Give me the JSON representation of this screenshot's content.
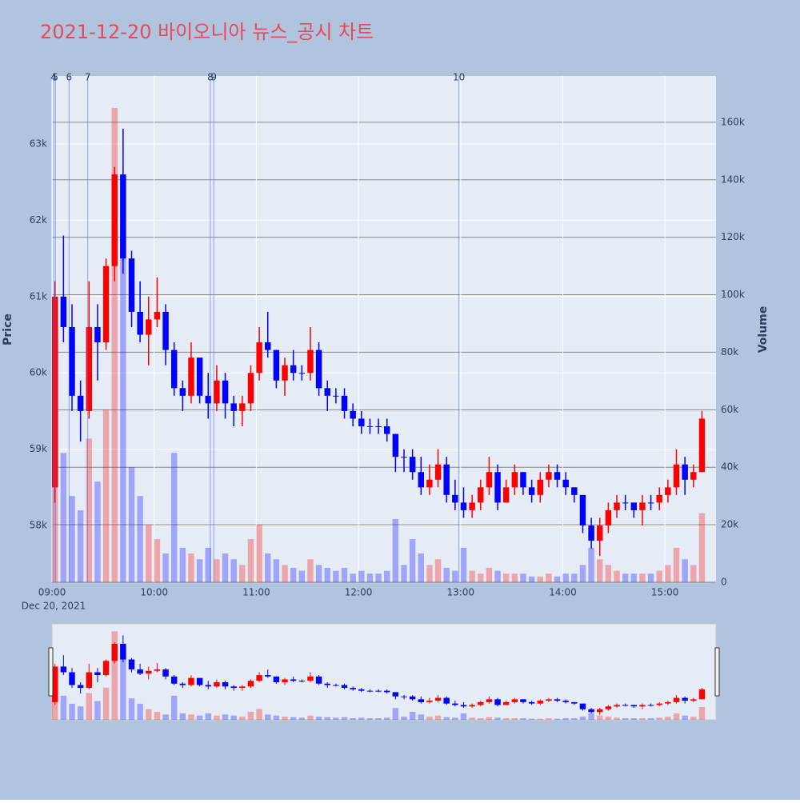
{
  "chart_data": {
    "type": "candlestick",
    "title": "2021-12-20 바이오니아 뉴스_공시 차트",
    "y_title": "Price",
    "y2_title": "Volume",
    "x": [
      "09:00",
      "09:05",
      "09:10",
      "09:15",
      "09:20",
      "09:25",
      "09:30",
      "09:35",
      "09:40",
      "09:45",
      "09:50",
      "09:55",
      "10:00",
      "10:05",
      "10:10",
      "10:15",
      "10:20",
      "10:25",
      "10:30",
      "10:35",
      "10:40",
      "10:45",
      "10:50",
      "10:55",
      "11:00",
      "11:05",
      "11:10",
      "11:15",
      "11:20",
      "11:25",
      "11:30",
      "11:35",
      "11:40",
      "11:45",
      "11:50",
      "11:55",
      "12:00",
      "12:05",
      "12:10",
      "12:15",
      "12:20",
      "12:25",
      "12:30",
      "12:35",
      "12:40",
      "12:45",
      "12:50",
      "12:55",
      "13:00",
      "13:05",
      "13:10",
      "13:15",
      "13:20",
      "13:25",
      "13:30",
      "13:35",
      "13:40",
      "13:45",
      "13:50",
      "13:55",
      "14:00",
      "14:05",
      "14:10",
      "14:15",
      "14:20",
      "14:25",
      "14:30",
      "14:35",
      "14:40",
      "14:45",
      "14:50",
      "14:55",
      "15:00",
      "15:05",
      "15:10",
      "15:15",
      "15:20"
    ],
    "open": [
      58500,
      61000,
      60600,
      59700,
      59500,
      60600,
      60400,
      61400,
      62600,
      61500,
      60800,
      60500,
      60700,
      60800,
      60300,
      59800,
      59700,
      60200,
      59700,
      59600,
      59900,
      59600,
      59500,
      59600,
      60000,
      60400,
      60300,
      59900,
      60100,
      60000,
      60000,
      60300,
      59800,
      59700,
      59700,
      59500,
      59400,
      59300,
      59300,
      59300,
      59200,
      58900,
      58900,
      58700,
      58500,
      58600,
      58800,
      58400,
      58300,
      58200,
      58300,
      58500,
      58700,
      58300,
      58500,
      58700,
      58500,
      58400,
      58600,
      58700,
      58600,
      58500,
      58400,
      58000,
      57800,
      58000,
      58200,
      58300,
      58300,
      58200,
      58300,
      58300,
      58400,
      58500,
      58800,
      58600,
      58700
    ],
    "high": [
      61200,
      61800,
      60900,
      59900,
      61200,
      60900,
      61500,
      62700,
      63200,
      61600,
      61200,
      61000,
      61250,
      60900,
      60400,
      59900,
      60400,
      60200,
      60000,
      60100,
      60000,
      59700,
      59700,
      60100,
      60600,
      60800,
      60300,
      60200,
      60300,
      60100,
      60600,
      60400,
      59900,
      59800,
      59800,
      59600,
      59500,
      59400,
      59400,
      59400,
      59200,
      59000,
      59000,
      58900,
      58800,
      59000,
      58900,
      58600,
      58500,
      58400,
      58600,
      58900,
      58800,
      58600,
      58800,
      58700,
      58600,
      58700,
      58800,
      58800,
      58700,
      58500,
      58400,
      58100,
      58100,
      58300,
      58400,
      58400,
      58300,
      58400,
      58400,
      58500,
      58600,
      59000,
      58900,
      58800,
      59500
    ],
    "low": [
      58300,
      60400,
      59500,
      59100,
      59400,
      59900,
      60300,
      61200,
      61300,
      60600,
      60400,
      60100,
      60600,
      60100,
      59700,
      59500,
      59600,
      59600,
      59400,
      59500,
      59400,
      59300,
      59300,
      59500,
      59900,
      60200,
      59800,
      59700,
      59900,
      59900,
      59900,
      59700,
      59500,
      59600,
      59400,
      59300,
      59200,
      59200,
      59200,
      59100,
      58700,
      58700,
      58600,
      58400,
      58400,
      58500,
      58300,
      58200,
      58100,
      58100,
      58200,
      58400,
      58200,
      58300,
      58400,
      58400,
      58300,
      58300,
      58500,
      58500,
      58400,
      58300,
      57900,
      57700,
      57600,
      57900,
      58100,
      58200,
      58100,
      58000,
      58200,
      58200,
      58300,
      58400,
      58400,
      58500,
      58700
    ],
    "close": [
      61000,
      60600,
      59700,
      59500,
      60600,
      60400,
      61400,
      62600,
      61500,
      60800,
      60500,
      60700,
      60800,
      60300,
      59800,
      59700,
      60200,
      59700,
      59600,
      59900,
      59600,
      59500,
      59600,
      60000,
      60400,
      60300,
      59900,
      60100,
      60000,
      60000,
      60300,
      59800,
      59700,
      59700,
      59500,
      59400,
      59300,
      59300,
      59300,
      59200,
      58900,
      58900,
      58700,
      58500,
      58600,
      58800,
      58400,
      58300,
      58200,
      58300,
      58500,
      58700,
      58300,
      58500,
      58700,
      58500,
      58400,
      58600,
      58700,
      58600,
      58500,
      58400,
      58000,
      57800,
      58000,
      58200,
      58300,
      58300,
      58200,
      58300,
      58300,
      58400,
      58500,
      58800,
      58600,
      58700,
      59400
    ],
    "volume": [
      88000,
      45000,
      30000,
      25000,
      50000,
      35000,
      60000,
      165000,
      120000,
      40000,
      30000,
      20000,
      15000,
      10000,
      45000,
      12000,
      10000,
      8000,
      12000,
      8000,
      10000,
      8000,
      6000,
      15000,
      20000,
      10000,
      8000,
      6000,
      5000,
      4000,
      8000,
      6000,
      5000,
      4000,
      5000,
      3000,
      4000,
      3000,
      3000,
      4000,
      22000,
      6000,
      15000,
      10000,
      6000,
      8000,
      5000,
      4000,
      12000,
      4000,
      3000,
      5000,
      4000,
      3000,
      3000,
      3000,
      2000,
      2000,
      3000,
      2000,
      3000,
      3000,
      6000,
      12000,
      8000,
      6000,
      4000,
      3000,
      3000,
      3000,
      3000,
      4000,
      6000,
      12000,
      8000,
      6000,
      24000
    ],
    "increasing_color": "#ff0000",
    "decreasing_color": "#0000ff",
    "xlim": [
      "09:00",
      "15:30"
    ],
    "xticks": [
      "09:00",
      "10:00",
      "11:00",
      "12:00",
      "13:00",
      "14:00",
      "15:00"
    ],
    "x_date_label": "Dec 20, 2021",
    "ylim": [
      57256,
      63891
    ],
    "yticks": [
      {
        "value": 58000,
        "label": "58k"
      },
      {
        "value": 59000,
        "label": "59k"
      },
      {
        "value": 60000,
        "label": "60k"
      },
      {
        "value": 61000,
        "label": "61k"
      },
      {
        "value": 62000,
        "label": "62k"
      },
      {
        "value": 63000,
        "label": "63k"
      }
    ],
    "y2lim": [
      0,
      176100
    ],
    "y2ticks": [
      0,
      {
        "value": 20000,
        "label": "20k"
      },
      {
        "value": 40000,
        "label": "40k"
      },
      {
        "value": 60000,
        "label": "60k"
      },
      {
        "value": 80000,
        "label": "80k"
      },
      {
        "value": 100000,
        "label": "100k"
      },
      {
        "value": 120000,
        "label": "120k"
      },
      {
        "value": 140000,
        "label": "140k"
      },
      {
        "value": 160000,
        "label": "160k"
      }
    ],
    "events": [
      {
        "label": "4",
        "x": "09:01"
      },
      {
        "label": "5",
        "x": "09:02"
      },
      {
        "label": "6",
        "x": "09:10"
      },
      {
        "label": "7",
        "x": "09:21"
      },
      {
        "label": "8",
        "x": "10:33"
      },
      {
        "label": "9",
        "x": "10:35"
      },
      {
        "label": "10",
        "x": "12:59"
      }
    ],
    "grid": true
  }
}
